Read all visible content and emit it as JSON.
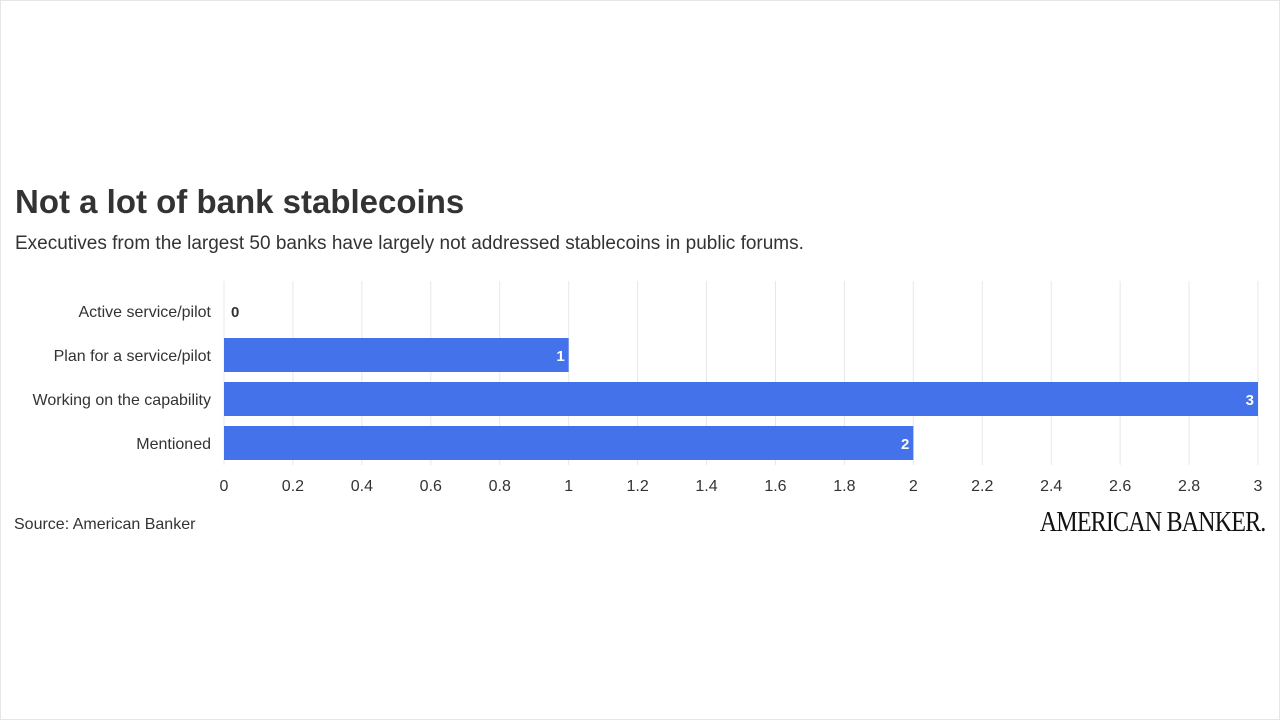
{
  "header": {
    "title": "Not a lot of bank stablecoins",
    "subtitle": "Executives from the largest 50 banks have largely not addressed stablecoins in public forums."
  },
  "footer": {
    "source": "Source: American Banker",
    "logo_text": "AMERICAN BANKER."
  },
  "colors": {
    "bar": "#4472ea",
    "grid": "#e8e8e8",
    "text": "#333333",
    "label_on_bar": "#ffffff"
  },
  "chart_data": {
    "type": "bar",
    "orientation": "horizontal",
    "categories": [
      "Active service/pilot",
      "Plan for a service/pilot",
      "Working on the capability",
      "Mentioned"
    ],
    "values": [
      0,
      1,
      3,
      2
    ],
    "data_labels": [
      "0",
      "1",
      "3",
      "2"
    ],
    "x_ticks": [
      "0",
      "0.2",
      "0.4",
      "0.6",
      "0.8",
      "1",
      "1.2",
      "1.4",
      "1.6",
      "1.8",
      "2",
      "2.2",
      "2.4",
      "2.6",
      "2.8",
      "3"
    ],
    "xlim": [
      0,
      3
    ],
    "grid": true,
    "legend": "none"
  }
}
